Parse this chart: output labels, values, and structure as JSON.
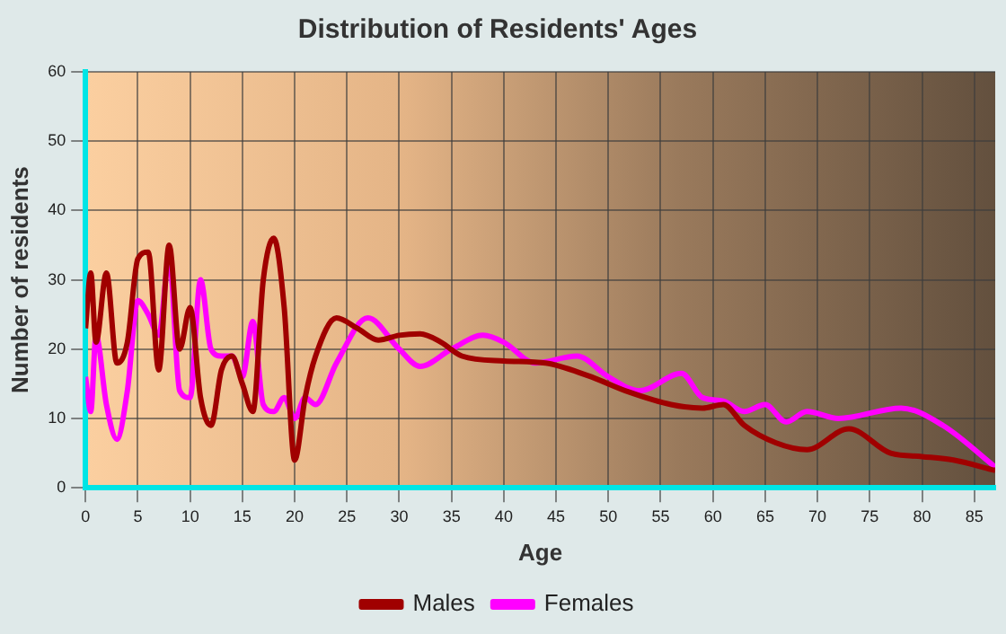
{
  "chart_data": {
    "type": "line",
    "title": "Distribution of Residents' Ages",
    "xlabel": "Age",
    "ylabel": "Number of residents",
    "xlim": [
      0,
      87
    ],
    "xticks": [
      0,
      5,
      10,
      15,
      20,
      25,
      30,
      35,
      40,
      45,
      50,
      55,
      60,
      65,
      70,
      75,
      80,
      85
    ],
    "ylim": [
      0,
      60
    ],
    "yticks": [
      0,
      10,
      20,
      30,
      40,
      50,
      60
    ],
    "grid": true,
    "legend": "bottom",
    "marker": "none",
    "line_style": "solid",
    "series": [
      {
        "name": "Males",
        "color": "#a00000",
        "x": [
          0,
          0.5,
          1,
          2,
          3,
          4,
          5,
          6,
          7,
          8,
          9,
          10,
          11,
          12,
          13,
          14,
          15,
          16,
          17,
          18,
          19,
          20,
          21,
          22,
          24,
          26,
          28,
          30,
          32,
          34,
          36,
          40,
          44,
          48,
          52,
          56,
          59,
          61,
          63,
          66,
          69,
          73,
          77,
          80,
          83,
          87
        ],
        "values": [
          23,
          31,
          21,
          31,
          18,
          21,
          33,
          34,
          17,
          35,
          20,
          26,
          13,
          9,
          17,
          19,
          15,
          11,
          30,
          36,
          26,
          4,
          13,
          19,
          24.5,
          23,
          21.3,
          22,
          22.2,
          21,
          19,
          18.3,
          18,
          16.2,
          13.8,
          12,
          11.5,
          12,
          9,
          6.5,
          5.5,
          8.5,
          5,
          4.5,
          4,
          2.5
        ]
      },
      {
        "name": "Females",
        "color": "#ff00ff",
        "x": [
          0,
          0.5,
          1,
          2,
          3,
          4,
          5,
          6,
          7,
          8,
          9,
          10,
          11,
          12,
          13,
          14,
          15,
          16,
          17,
          18,
          19,
          20,
          21,
          22,
          24,
          27,
          30,
          32,
          35,
          38,
          40,
          43,
          47,
          50,
          53,
          57,
          59,
          61,
          63,
          65,
          67,
          69,
          72,
          78,
          82,
          87
        ],
        "values": [
          16,
          11,
          22,
          12,
          7,
          14,
          27,
          25,
          22,
          33,
          14,
          13,
          30,
          20,
          19,
          19,
          16,
          24,
          12,
          11,
          13,
          10,
          13,
          12,
          18,
          24.5,
          20,
          17.5,
          20,
          22,
          21,
          18,
          19,
          16,
          14,
          16.5,
          13,
          12.5,
          11,
          12,
          9.5,
          11,
          10,
          11.5,
          9,
          3
        ]
      }
    ]
  }
}
